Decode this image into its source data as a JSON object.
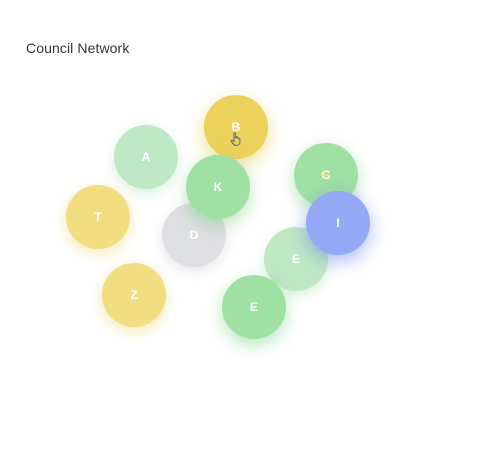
{
  "title": "Council Network",
  "nodes": [
    {
      "id": "node-a",
      "label": "A",
      "color": "#bfe8c4"
    },
    {
      "id": "node-b",
      "label": "B",
      "color": "#ecd25a"
    },
    {
      "id": "node-k",
      "label": "K",
      "color": "#9fe0a3"
    },
    {
      "id": "node-g",
      "label": "G",
      "color": "#9fe0a3"
    },
    {
      "id": "node-t",
      "label": "T",
      "color": "#f0de80"
    },
    {
      "id": "node-d",
      "label": "D",
      "color": "#dedfe3"
    },
    {
      "id": "node-i",
      "label": "I",
      "color": "#94a8f6"
    },
    {
      "id": "node-e1",
      "label": "E",
      "color": "#bfe8c4"
    },
    {
      "id": "node-z",
      "label": "Z",
      "color": "#f0de80"
    },
    {
      "id": "node-e2",
      "label": "E",
      "color": "#9fe0a3"
    }
  ],
  "icons": {
    "cursor": "hand-pointer-icon",
    "sparkle": "sparkle-icon"
  }
}
